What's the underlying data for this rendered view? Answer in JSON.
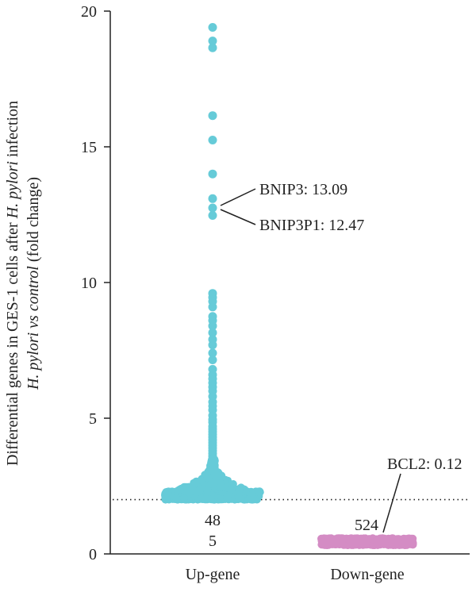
{
  "chart_data": {
    "type": "scatter",
    "subtype": "beeswarm",
    "categories": [
      "Up-gene",
      "Down-gene"
    ],
    "ylim": [
      0,
      20
    ],
    "yticks": [
      "0",
      "5",
      "10",
      "15",
      "20"
    ],
    "ylabel_line1_parts": [
      "Differential genes in GES-1 cells after ",
      "H. pylori",
      " infection"
    ],
    "ylabel_line2_parts": [
      "H. pylori vs control",
      " (fold change)"
    ],
    "threshold": 2,
    "series": [
      {
        "category": "Up-gene",
        "color": "#66cbd8",
        "count_label_lines": [
          "48",
          "5"
        ],
        "high_values": [
          19.4,
          18.9,
          18.65,
          16.15,
          15.25,
          14.0,
          13.09,
          12.75,
          12.47,
          9.6,
          9.45,
          9.3,
          9.1,
          8.75,
          8.6,
          8.4,
          8.15,
          7.9,
          7.7,
          7.4,
          7.15,
          6.8,
          6.6,
          6.45,
          6.3,
          6.15,
          6.0,
          5.8,
          5.6,
          5.45,
          5.3,
          5.1,
          4.95,
          4.85,
          4.7,
          4.6,
          4.5,
          4.4,
          4.3,
          4.2,
          4.1,
          4.0,
          3.9,
          3.8,
          3.7,
          3.6,
          3.5,
          3.4,
          3.3,
          3.2,
          3.1,
          3.0,
          2.9,
          2.8,
          2.7,
          2.6
        ],
        "base_range": [
          2.0,
          2.5
        ]
      },
      {
        "category": "Down-gene",
        "color": "#d48cc4",
        "count_label_lines": [
          "524"
        ],
        "high_values": [],
        "base_range": [
          0.05,
          0.6
        ]
      }
    ],
    "annotations": [
      {
        "label": "BNIP3: 13.09",
        "category": "Up-gene",
        "value": 13.09
      },
      {
        "label": "BNIP3P1: 12.47",
        "category": "Up-gene",
        "value": 12.47
      },
      {
        "label": "BCL2: 0.12",
        "category": "Down-gene",
        "value": 0.12
      }
    ]
  }
}
